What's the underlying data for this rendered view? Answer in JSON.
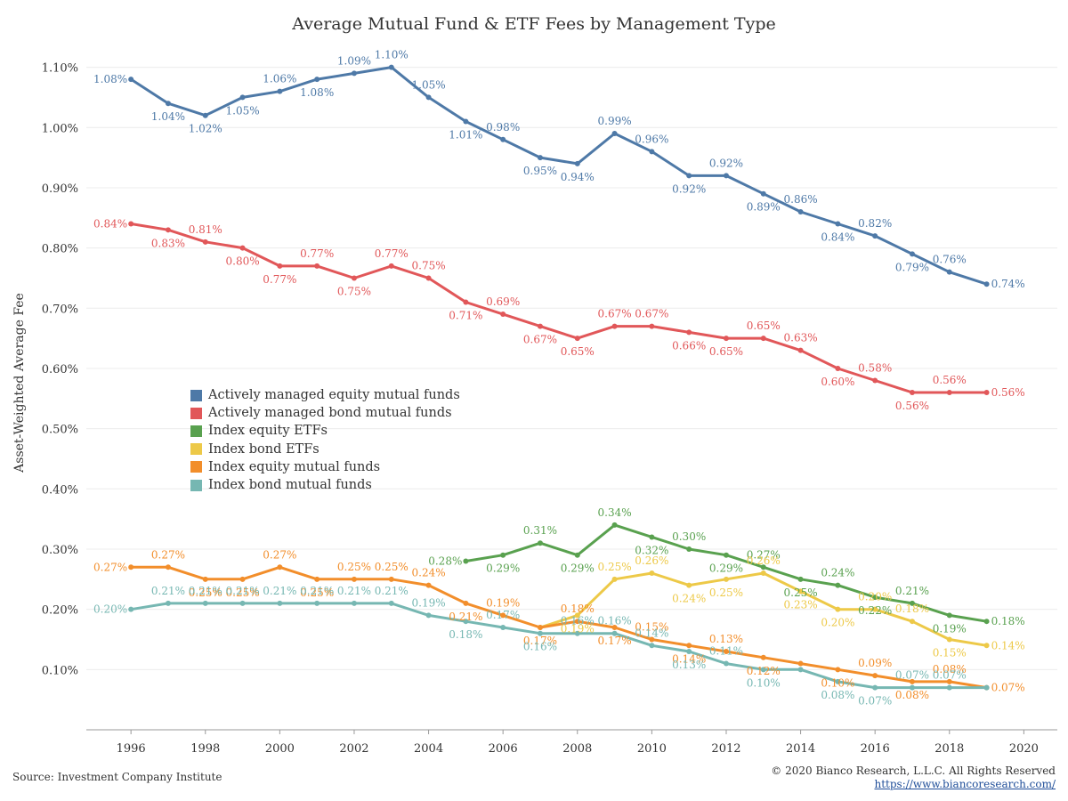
{
  "chart_data": {
    "type": "line",
    "title": "Average Mutual Fund & ETF Fees by Management Type",
    "xlabel": "",
    "ylabel": "Asset-Weighted Average Fee",
    "x_ticks": [
      "1996",
      "1998",
      "2000",
      "2002",
      "2004",
      "2006",
      "2008",
      "2010",
      "2012",
      "2014",
      "2016",
      "2018",
      "2020"
    ],
    "y_ticks": [
      "0.10%",
      "0.20%",
      "0.30%",
      "0.40%",
      "0.50%",
      "0.60%",
      "0.70%",
      "0.80%",
      "0.90%",
      "1.00%",
      "1.10%"
    ],
    "xlim": [
      1994.8,
      2020.9
    ],
    "ylim": [
      0.0,
      1.126
    ],
    "grid": true,
    "legend_position": "center-left",
    "series": [
      {
        "name": "Actively managed equity mutual funds",
        "color": "#4e79a7",
        "x": [
          1996,
          1997,
          1998,
          1999,
          2000,
          2001,
          2002,
          2003,
          2004,
          2005,
          2006,
          2007,
          2008,
          2009,
          2010,
          2011,
          2012,
          2013,
          2014,
          2015,
          2016,
          2017,
          2018,
          2019
        ],
        "values": [
          1.08,
          1.04,
          1.02,
          1.05,
          1.06,
          1.08,
          1.09,
          1.1,
          1.05,
          1.01,
          0.98,
          0.95,
          0.94,
          0.99,
          0.96,
          0.92,
          0.92,
          0.89,
          0.86,
          0.84,
          0.82,
          0.79,
          0.76,
          0.74
        ],
        "labels": [
          "1.08%",
          "1.04%",
          "1.02%",
          "1.05%",
          "1.06%",
          "1.08%",
          "1.09%",
          "1.10%",
          "1.05%",
          "1.01%",
          "0.98%",
          "0.95%",
          "0.94%",
          "0.99%",
          "0.96%",
          "0.92%",
          "0.92%",
          "0.89%",
          "0.86%",
          "0.84%",
          "0.82%",
          "0.79%",
          "0.76%",
          "0.74%"
        ]
      },
      {
        "name": "Actively managed bond mutual funds",
        "color": "#e15759",
        "x": [
          1996,
          1997,
          1998,
          1999,
          2000,
          2001,
          2002,
          2003,
          2004,
          2005,
          2006,
          2007,
          2008,
          2009,
          2010,
          2011,
          2012,
          2013,
          2014,
          2015,
          2016,
          2017,
          2018,
          2019
        ],
        "values": [
          0.84,
          0.83,
          0.81,
          0.8,
          0.77,
          0.77,
          0.75,
          0.77,
          0.75,
          0.71,
          0.69,
          0.67,
          0.65,
          0.67,
          0.67,
          0.66,
          0.65,
          0.65,
          0.63,
          0.6,
          0.58,
          0.56,
          0.56,
          0.56
        ],
        "labels": [
          "0.84%",
          "0.83%",
          "0.81%",
          "0.80%",
          "0.77%",
          "0.77%",
          "0.75%",
          "0.77%",
          "0.75%",
          "0.71%",
          "0.69%",
          "0.67%",
          "0.65%",
          "0.67%",
          "0.67%",
          "0.66%",
          "0.65%",
          "0.65%",
          "0.63%",
          "0.60%",
          "0.58%",
          "0.56%",
          "0.56%",
          "0.56%"
        ]
      },
      {
        "name": "Index equity ETFs",
        "color": "#59a14f",
        "x": [
          2005,
          2006,
          2007,
          2008,
          2009,
          2010,
          2011,
          2012,
          2013,
          2014,
          2015,
          2016,
          2017,
          2018,
          2019
        ],
        "values": [
          0.28,
          0.29,
          0.31,
          0.29,
          0.34,
          0.32,
          0.3,
          0.29,
          0.27,
          0.25,
          0.24,
          0.22,
          0.21,
          0.19,
          0.18
        ],
        "labels": [
          "0.28%",
          "0.29%",
          "0.31%",
          "0.29%",
          "0.34%",
          "0.32%",
          "0.30%",
          "0.29%",
          "0.27%",
          "0.25%",
          "0.24%",
          "0.22%",
          "0.21%",
          "0.19%",
          "0.18%"
        ]
      },
      {
        "name": "Index bond ETFs",
        "color": "#edc948",
        "x": [
          2007,
          2008,
          2009,
          2010,
          2011,
          2012,
          2013,
          2014,
          2015,
          2016,
          2017,
          2018,
          2019
        ],
        "values": [
          0.17,
          0.19,
          0.25,
          0.26,
          0.24,
          0.25,
          0.26,
          0.23,
          0.2,
          0.2,
          0.18,
          0.15,
          0.14
        ],
        "labels": [
          "",
          "0.19%",
          "0.25%",
          "0.26%",
          "0.24%",
          "0.25%",
          "0.26%",
          "0.23%",
          "0.20%",
          "0.20%",
          "0.18%",
          "0.15%",
          "0.14%"
        ]
      },
      {
        "name": "Index equity mutual funds",
        "color": "#f28e2b",
        "x": [
          1996,
          1997,
          1998,
          1999,
          2000,
          2001,
          2002,
          2003,
          2004,
          2005,
          2006,
          2007,
          2008,
          2009,
          2010,
          2011,
          2012,
          2013,
          2014,
          2015,
          2016,
          2017,
          2018,
          2019
        ],
        "values": [
          0.27,
          0.27,
          0.25,
          0.25,
          0.27,
          0.25,
          0.25,
          0.25,
          0.24,
          0.21,
          0.19,
          0.17,
          0.18,
          0.17,
          0.15,
          0.14,
          0.13,
          0.12,
          0.11,
          0.1,
          0.09,
          0.08,
          0.08,
          0.07
        ],
        "labels": [
          "0.27%",
          "0.27%",
          "0.25%",
          "0.25%",
          "0.27%",
          "0.25%",
          "0.25%",
          "0.25%",
          "0.24%",
          "0.21%",
          "0.19%",
          "0.17%",
          "0.18%",
          "0.17%",
          "0.15%",
          "0.14%",
          "0.13%",
          "0.12%",
          "",
          "0.10%",
          "0.09%",
          "0.08%",
          "0.08%",
          "0.07%"
        ]
      },
      {
        "name": "Index bond mutual funds",
        "color": "#76b7b2",
        "x": [
          1996,
          1997,
          1998,
          1999,
          2000,
          2001,
          2002,
          2003,
          2004,
          2005,
          2006,
          2007,
          2008,
          2009,
          2010,
          2011,
          2012,
          2013,
          2014,
          2015,
          2016,
          2017,
          2018,
          2019
        ],
        "values": [
          0.2,
          0.21,
          0.21,
          0.21,
          0.21,
          0.21,
          0.21,
          0.21,
          0.19,
          0.18,
          0.17,
          0.16,
          0.16,
          0.16,
          0.14,
          0.13,
          0.11,
          0.1,
          0.1,
          0.08,
          0.07,
          0.07,
          0.07,
          0.07
        ],
        "labels": [
          "0.20%",
          "0.21%",
          "0.21%",
          "0.21%",
          "0.21%",
          "0.21%",
          "0.21%",
          "0.21%",
          "0.19%",
          "0.18%",
          "0.17%",
          "0.16%",
          "0.16%",
          "0.16%",
          "0.14%",
          "0.13%",
          "0.11%",
          "0.10%",
          "",
          "0.08%",
          "0.07%",
          "0.07%",
          "0.07%",
          ""
        ]
      }
    ]
  },
  "footer": {
    "source": "Source: Investment Company Institute",
    "copyright": "© 2020 Bianco Research, L.L.C. All Rights Reserved",
    "link": "https://www.biancoresearch.com/"
  }
}
